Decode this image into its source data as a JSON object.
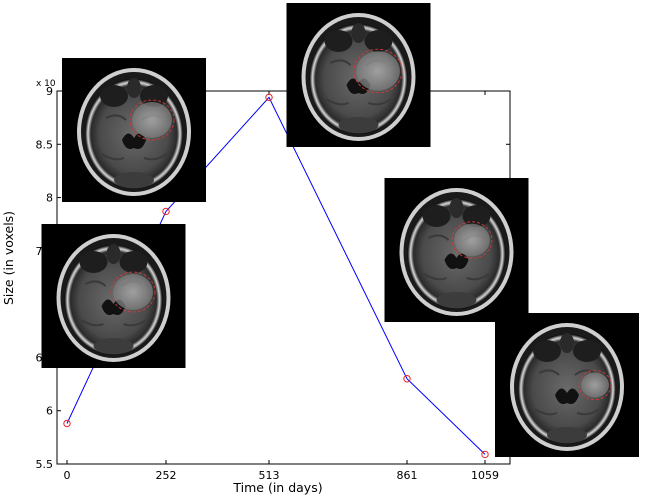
{
  "chart_data": {
    "type": "line",
    "xlabel": "Time (in days)",
    "ylabel": "Size (in voxels)",
    "y_multiplier": {
      "base": "x 10",
      "exponent": "4"
    },
    "x": [
      0,
      252,
      513,
      861,
      1059
    ],
    "x_tick_labels": [
      "0",
      "252",
      "513",
      "861",
      "1059"
    ],
    "categorical_x": true,
    "ylim": [
      55000,
      90000
    ],
    "y_ticks": [
      55000,
      60000,
      65000,
      70000,
      75000,
      80000,
      85000,
      90000
    ],
    "y_tick_labels": [
      "5.5",
      "6",
      "6.5",
      "7",
      "7.5",
      "8",
      "8.5",
      "9"
    ],
    "series": [
      {
        "values": [
          58800,
          78700,
          89400,
          63000,
          55900
        ]
      }
    ],
    "colors": {
      "line": "#0000ff",
      "marker": "#e8262a",
      "frame": "#000000"
    },
    "grid": false,
    "insets": [
      {
        "kind": "axial brain MRI slice",
        "near_x": 0
      },
      {
        "kind": "axial brain MRI slice",
        "near_x": 252
      },
      {
        "kind": "axial brain MRI slice",
        "near_x": 513
      },
      {
        "kind": "axial brain MRI slice",
        "near_x": 861
      },
      {
        "kind": "axial brain MRI slice",
        "near_x": 1059
      }
    ]
  }
}
